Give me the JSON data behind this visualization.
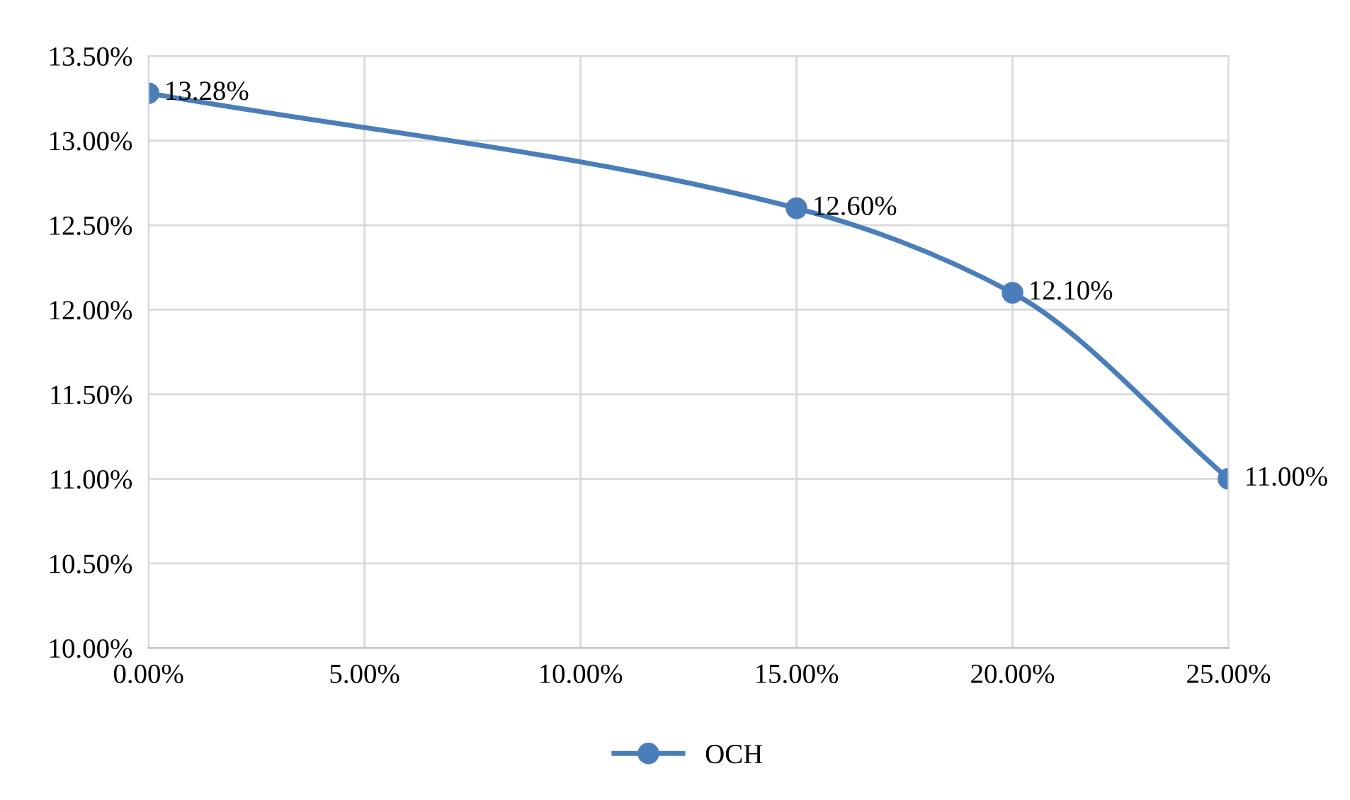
{
  "chart_data": {
    "type": "line",
    "x": [
      0,
      15,
      20,
      25
    ],
    "series": [
      {
        "name": "OCH",
        "color": "#4a7ebb",
        "values": [
          13.28,
          12.6,
          12.1,
          11.0
        ],
        "value_labels": [
          "13.28%",
          "12.60%",
          "12.10%",
          "11.00%"
        ]
      }
    ],
    "xlim": [
      0,
      25
    ],
    "xticks": [
      {
        "value": 0,
        "label": "0.00%"
      },
      {
        "value": 5,
        "label": "5.00%"
      },
      {
        "value": 10,
        "label": "10.00%"
      },
      {
        "value": 15,
        "label": "15.00%"
      },
      {
        "value": 20,
        "label": "20.00%"
      },
      {
        "value": 25,
        "label": "25.00%"
      }
    ],
    "ylim": [
      10,
      13.5
    ],
    "yticks": [
      {
        "value": 10,
        "label": "10.00%"
      },
      {
        "value": 10.5,
        "label": "10.50%"
      },
      {
        "value": 11,
        "label": "11.00%"
      },
      {
        "value": 11.5,
        "label": "11.50%"
      },
      {
        "value": 12,
        "label": "12.00%"
      },
      {
        "value": 12.5,
        "label": "12.50%"
      },
      {
        "value": 13,
        "label": "13.00%"
      },
      {
        "value": 13.5,
        "label": "13.50%"
      }
    ],
    "grid": true,
    "legend": "bottom",
    "marker": "circle",
    "line_style": "solid"
  }
}
